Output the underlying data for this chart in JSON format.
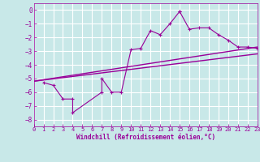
{
  "xlabel": "Windchill (Refroidissement éolien,°C)",
  "background_color": "#c8e8e8",
  "line_color": "#990099",
  "xlim": [
    0,
    23
  ],
  "ylim": [
    -8.5,
    0.5
  ],
  "yticks": [
    0,
    -1,
    -2,
    -3,
    -4,
    -5,
    -6,
    -7,
    -8
  ],
  "xticks": [
    0,
    1,
    2,
    3,
    4,
    5,
    6,
    7,
    8,
    9,
    10,
    11,
    12,
    13,
    14,
    15,
    16,
    17,
    18,
    19,
    20,
    21,
    22,
    23
  ],
  "series1_x": [
    1,
    2,
    3,
    4,
    4,
    7,
    7,
    8,
    9,
    10,
    11,
    12,
    13,
    14,
    15,
    15,
    16,
    17,
    18,
    19,
    20,
    21,
    22,
    23
  ],
  "series1_y": [
    -5.3,
    -5.5,
    -6.5,
    -6.5,
    -7.5,
    -6.0,
    -5.0,
    -6.0,
    -6.0,
    -2.9,
    -2.8,
    -1.5,
    -1.8,
    -1.0,
    -0.1,
    -0.1,
    -1.4,
    -1.3,
    -1.3,
    -1.8,
    -2.2,
    -2.7,
    -2.7,
    -2.8
  ],
  "series2_x": [
    0,
    23
  ],
  "series2_y": [
    -5.2,
    -2.7
  ],
  "series3_x": [
    0,
    23
  ],
  "series3_y": [
    -5.2,
    -3.2
  ]
}
